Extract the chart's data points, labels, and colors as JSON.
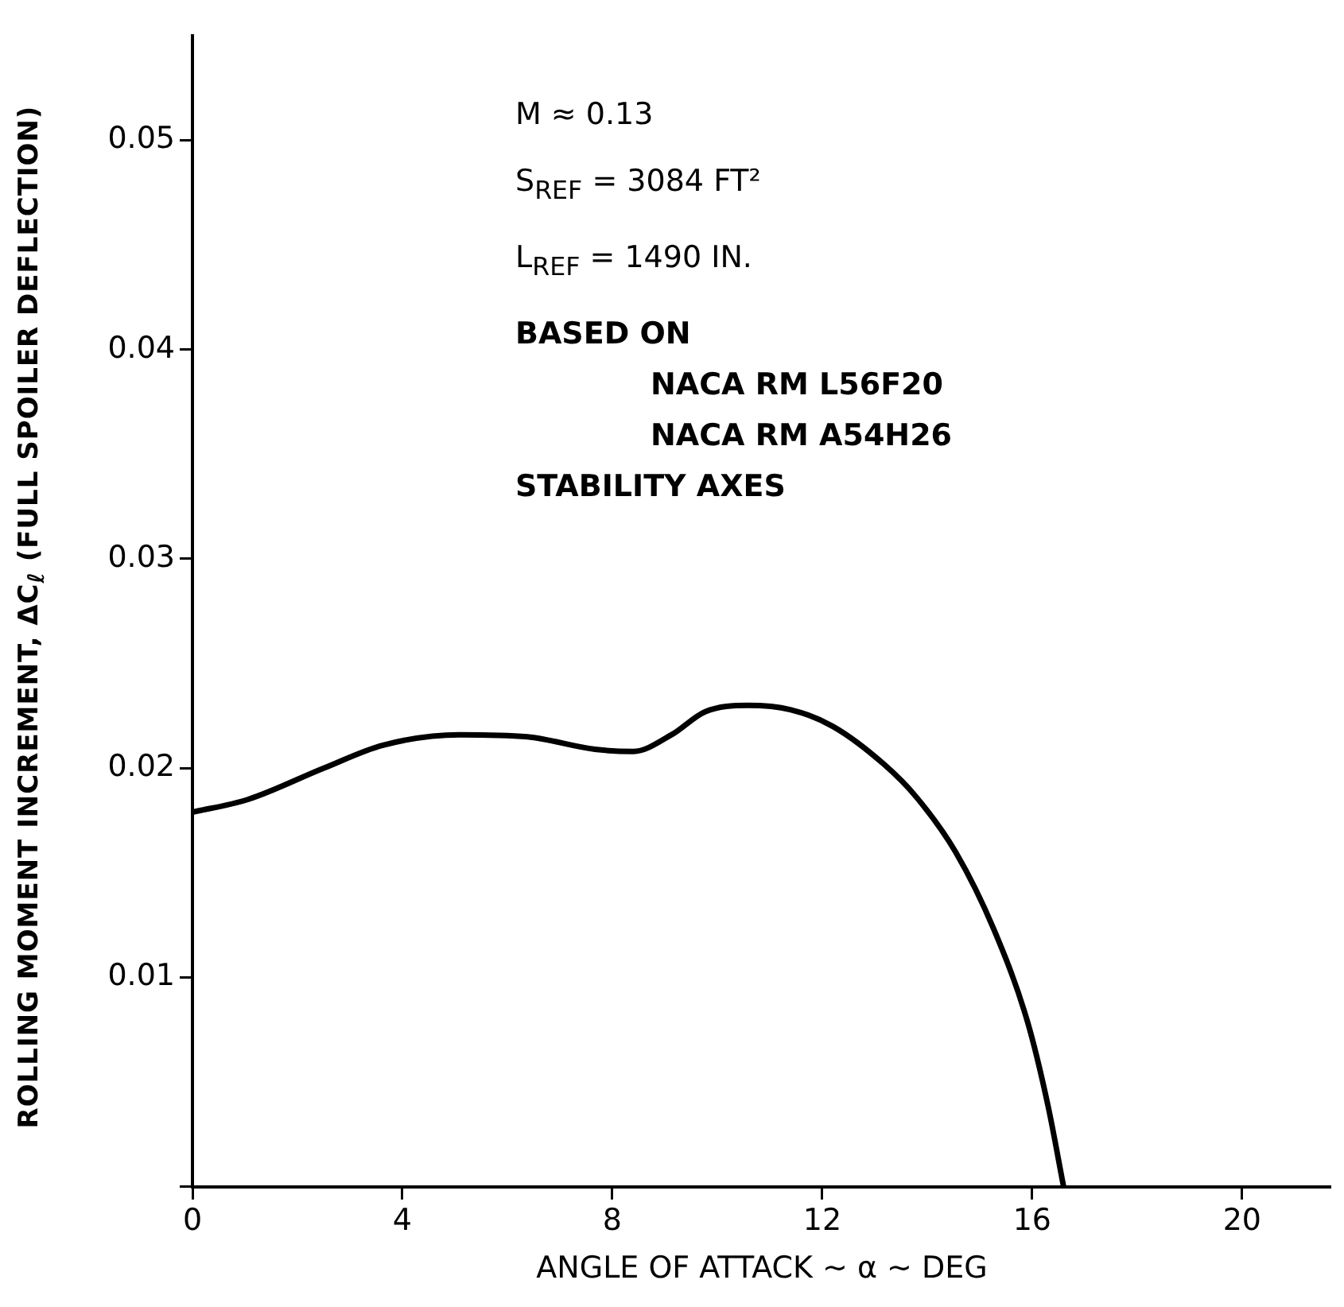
{
  "chart_data": {
    "type": "line",
    "xlabel": "ANGLE OF ATTACK ~ α ~ DEG",
    "ylabel": "ROLLING MOMENT INCREMENT, ΔC$_{ℓ}$ (FULL SPOILER DEFLECTION)",
    "annotations": [
      "M ≈ 0.13",
      "S$_{REF}$ = 3084 FT²",
      "L$_{REF}$ = 1490 IN.",
      "BASED ON",
      "NACA RM L56F20",
      "NACA RM A54H26",
      "STABILITY AXES"
    ],
    "x": [
      0,
      1.05,
      2.5,
      3.63,
      5.09,
      6.38,
      7.67,
      8.4,
      9.13,
      9.77,
      10.58,
      11.39,
      12.2,
      13.17,
      13.8,
      14.54,
      15.27,
      15.91,
      16.3,
      16.6
    ],
    "series": [
      {
        "color": "#000000",
        "values": [
          0.0179,
          0.0185,
          0.02,
          0.0211,
          0.0216,
          0.0215,
          0.0209,
          0.0208,
          0.0216,
          0.0227,
          0.023,
          0.0228,
          0.022,
          0.0202,
          0.0186,
          0.016,
          0.0123,
          0.0079,
          0.0039,
          0
        ]
      }
    ],
    "xlim": [
      0,
      21.7
    ],
    "ylim": [
      0,
      0.055
    ],
    "xticks": [
      0,
      4,
      8,
      12,
      16,
      20
    ],
    "yticks": [
      {
        "value": 0,
        "label": null
      },
      0.01,
      0.02,
      0.03,
      0.04,
      0.05
    ],
    "grid": false,
    "legend": false,
    "marker": "none",
    "line_style": "solid"
  }
}
